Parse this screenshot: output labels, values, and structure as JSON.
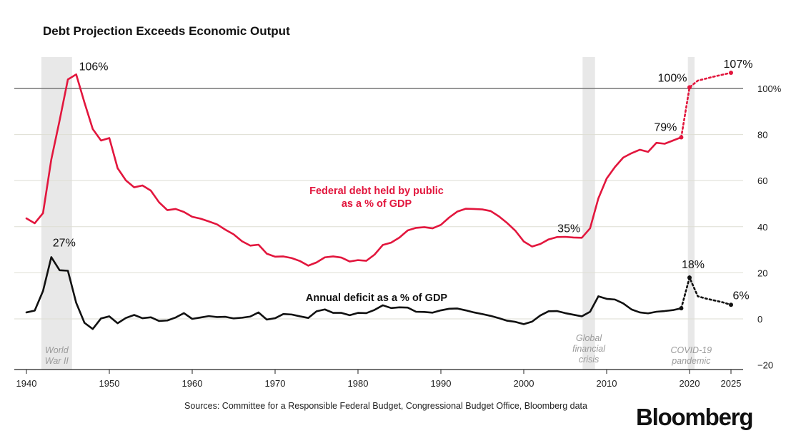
{
  "chart_data": {
    "type": "line",
    "title": "Debt Projection Exceeds Economic Output",
    "xlabel": "",
    "ylabel": "",
    "xlim": [
      1939,
      2026
    ],
    "ylim": [
      -20,
      110
    ],
    "x_ticks": [
      "1940",
      "1950",
      "1960",
      "1970",
      "1980",
      "1990",
      "2000",
      "2010",
      "2020",
      "2025"
    ],
    "y_ticks": [
      {
        "value": 100,
        "label": "100%"
      },
      {
        "value": 80,
        "label": "80"
      },
      {
        "value": 60,
        "label": "60"
      },
      {
        "value": 40,
        "label": "40"
      },
      {
        "value": 20,
        "label": "20"
      },
      {
        "value": 0,
        "label": "0"
      },
      {
        "value": -20,
        "label": "−20"
      }
    ],
    "reference_line": 100,
    "shaded_periods": [
      {
        "name": "World War II",
        "label_lines": [
          "World",
          "War II"
        ],
        "start": 1941.8,
        "end": 1945.5
      },
      {
        "name": "Global financial crisis",
        "label_lines": [
          "Global",
          "financial",
          "crisis"
        ],
        "start": 2007.1,
        "end": 2008.6
      },
      {
        "name": "COVID-19 pandemic",
        "label_lines": [
          "COVID-19",
          "pandemic"
        ],
        "start": 2019.8,
        "end": 2020.6
      }
    ],
    "series": [
      {
        "name": "Federal debt held by public as a % of GDP",
        "label_lines": [
          "Federal debt held by public",
          "as a % of GDP"
        ],
        "color": "#e2163d",
        "x": [
          1940,
          1941,
          1942,
          1943,
          1944,
          1945,
          1946,
          1947,
          1948,
          1949,
          1950,
          1951,
          1952,
          1953,
          1954,
          1955,
          1956,
          1957,
          1958,
          1959,
          1960,
          1961,
          1962,
          1963,
          1964,
          1965,
          1966,
          1967,
          1968,
          1969,
          1970,
          1971,
          1972,
          1973,
          1974,
          1975,
          1976,
          1977,
          1978,
          1979,
          1980,
          1981,
          1982,
          1983,
          1984,
          1985,
          1986,
          1987,
          1988,
          1989,
          1990,
          1991,
          1992,
          1993,
          1994,
          1995,
          1996,
          1997,
          1998,
          1999,
          2000,
          2001,
          2002,
          2003,
          2004,
          2005,
          2006,
          2007,
          2008,
          2009,
          2010,
          2011,
          2012,
          2013,
          2014,
          2015,
          2016,
          2017,
          2018,
          2019
        ],
        "values": [
          43.6,
          41.5,
          45.9,
          69.2,
          86.1,
          103.9,
          106.1,
          93.9,
          82.4,
          77.4,
          78.5,
          65.4,
          60.1,
          57.1,
          57.9,
          55.7,
          50.6,
          47.2,
          47.7,
          46.4,
          44.3,
          43.5,
          42.3,
          41.0,
          38.7,
          36.7,
          33.7,
          31.8,
          32.2,
          28.3,
          27.0,
          27.1,
          26.4,
          25.1,
          23.1,
          24.5,
          26.7,
          27.1,
          26.6,
          24.9,
          25.5,
          25.2,
          27.9,
          32.1,
          33.1,
          35.3,
          38.4,
          39.5,
          39.8,
          39.3,
          40.8,
          44.0,
          46.6,
          47.8,
          47.7,
          47.5,
          46.8,
          44.5,
          41.6,
          38.2,
          33.6,
          31.4,
          32.5,
          34.5,
          35.5,
          35.6,
          35.3,
          35.2,
          39.3,
          52.3,
          60.9,
          65.9,
          70.0,
          71.9,
          73.4,
          72.5,
          76.4,
          76.0,
          77.4,
          78.8
        ],
        "projection": {
          "x": [
            2019,
            2020,
            2021,
            2022,
            2023,
            2024,
            2025
          ],
          "values": [
            78.8,
            100.5,
            103.4,
            104.3,
            105.2,
            106.0,
            106.8
          ]
        },
        "annotations": [
          {
            "x": 1946,
            "value": 106.1,
            "text": "106%"
          },
          {
            "x": 2007,
            "value": 35.2,
            "text": "35%"
          },
          {
            "x": 2019,
            "value": 78.8,
            "text": "79%"
          },
          {
            "x": 2020,
            "value": 100.5,
            "text": "100%"
          },
          {
            "x": 2025,
            "value": 106.8,
            "text": "107%"
          }
        ]
      },
      {
        "name": "Annual deficit as a % of GDP",
        "label_lines": [
          "Annual deficit as a % of GDP"
        ],
        "color": "#111111",
        "x": [
          1940,
          1941,
          1942,
          1943,
          1944,
          1945,
          1946,
          1947,
          1948,
          1949,
          1950,
          1951,
          1952,
          1953,
          1954,
          1955,
          1956,
          1957,
          1958,
          1959,
          1960,
          1961,
          1962,
          1963,
          1964,
          1965,
          1966,
          1967,
          1968,
          1969,
          1970,
          1971,
          1972,
          1973,
          1974,
          1975,
          1976,
          1977,
          1978,
          1979,
          1980,
          1981,
          1982,
          1983,
          1984,
          1985,
          1986,
          1987,
          1988,
          1989,
          1990,
          1991,
          1992,
          1993,
          1994,
          1995,
          1996,
          1997,
          1998,
          1999,
          2000,
          2001,
          2002,
          2003,
          2004,
          2005,
          2006,
          2007,
          2008,
          2009,
          2010,
          2011,
          2012,
          2013,
          2014,
          2015,
          2016,
          2017,
          2018,
          2019
        ],
        "values": [
          2.8,
          3.6,
          12.1,
          26.8,
          21.1,
          20.9,
          7.0,
          -1.7,
          -4.4,
          0.2,
          1.1,
          -1.9,
          0.4,
          1.7,
          0.3,
          0.7,
          -0.9,
          -0.7,
          0.6,
          2.5,
          0.0,
          0.6,
          1.2,
          0.8,
          0.9,
          0.2,
          0.5,
          1.0,
          2.8,
          -0.3,
          0.3,
          2.1,
          1.9,
          1.1,
          0.4,
          3.3,
          4.1,
          2.6,
          2.6,
          1.6,
          2.6,
          2.5,
          3.9,
          5.9,
          4.7,
          5.0,
          4.9,
          3.1,
          3.0,
          2.7,
          3.7,
          4.4,
          4.5,
          3.7,
          2.8,
          2.1,
          1.3,
          0.3,
          -0.8,
          -1.3,
          -2.3,
          -1.2,
          1.5,
          3.3,
          3.4,
          2.5,
          1.8,
          1.1,
          3.1,
          9.8,
          8.7,
          8.4,
          6.7,
          4.1,
          2.8,
          2.4,
          3.1,
          3.4,
          3.8,
          4.6
        ],
        "projection": {
          "x": [
            2019,
            2020,
            2021,
            2022,
            2023,
            2024,
            2025
          ],
          "values": [
            4.6,
            17.9,
            9.8,
            8.8,
            8.0,
            7.2,
            6.1
          ]
        },
        "annotations": [
          {
            "x": 1943,
            "value": 26.8,
            "text": "27%"
          },
          {
            "x": 2020,
            "value": 17.9,
            "text": "18%"
          },
          {
            "x": 2025,
            "value": 6.1,
            "text": "6%"
          }
        ]
      }
    ],
    "sources": "Sources: Committee for a Responsible Federal Budget, Congressional Budget Office, Bloomberg data",
    "brand": "Bloomberg"
  },
  "colors": {
    "debt": "#e2163d",
    "deficit": "#111111",
    "shade": "#e8e8e8",
    "grid": "#deded3",
    "axis": "#222222",
    "shade_text": "#9a9a9a"
  }
}
